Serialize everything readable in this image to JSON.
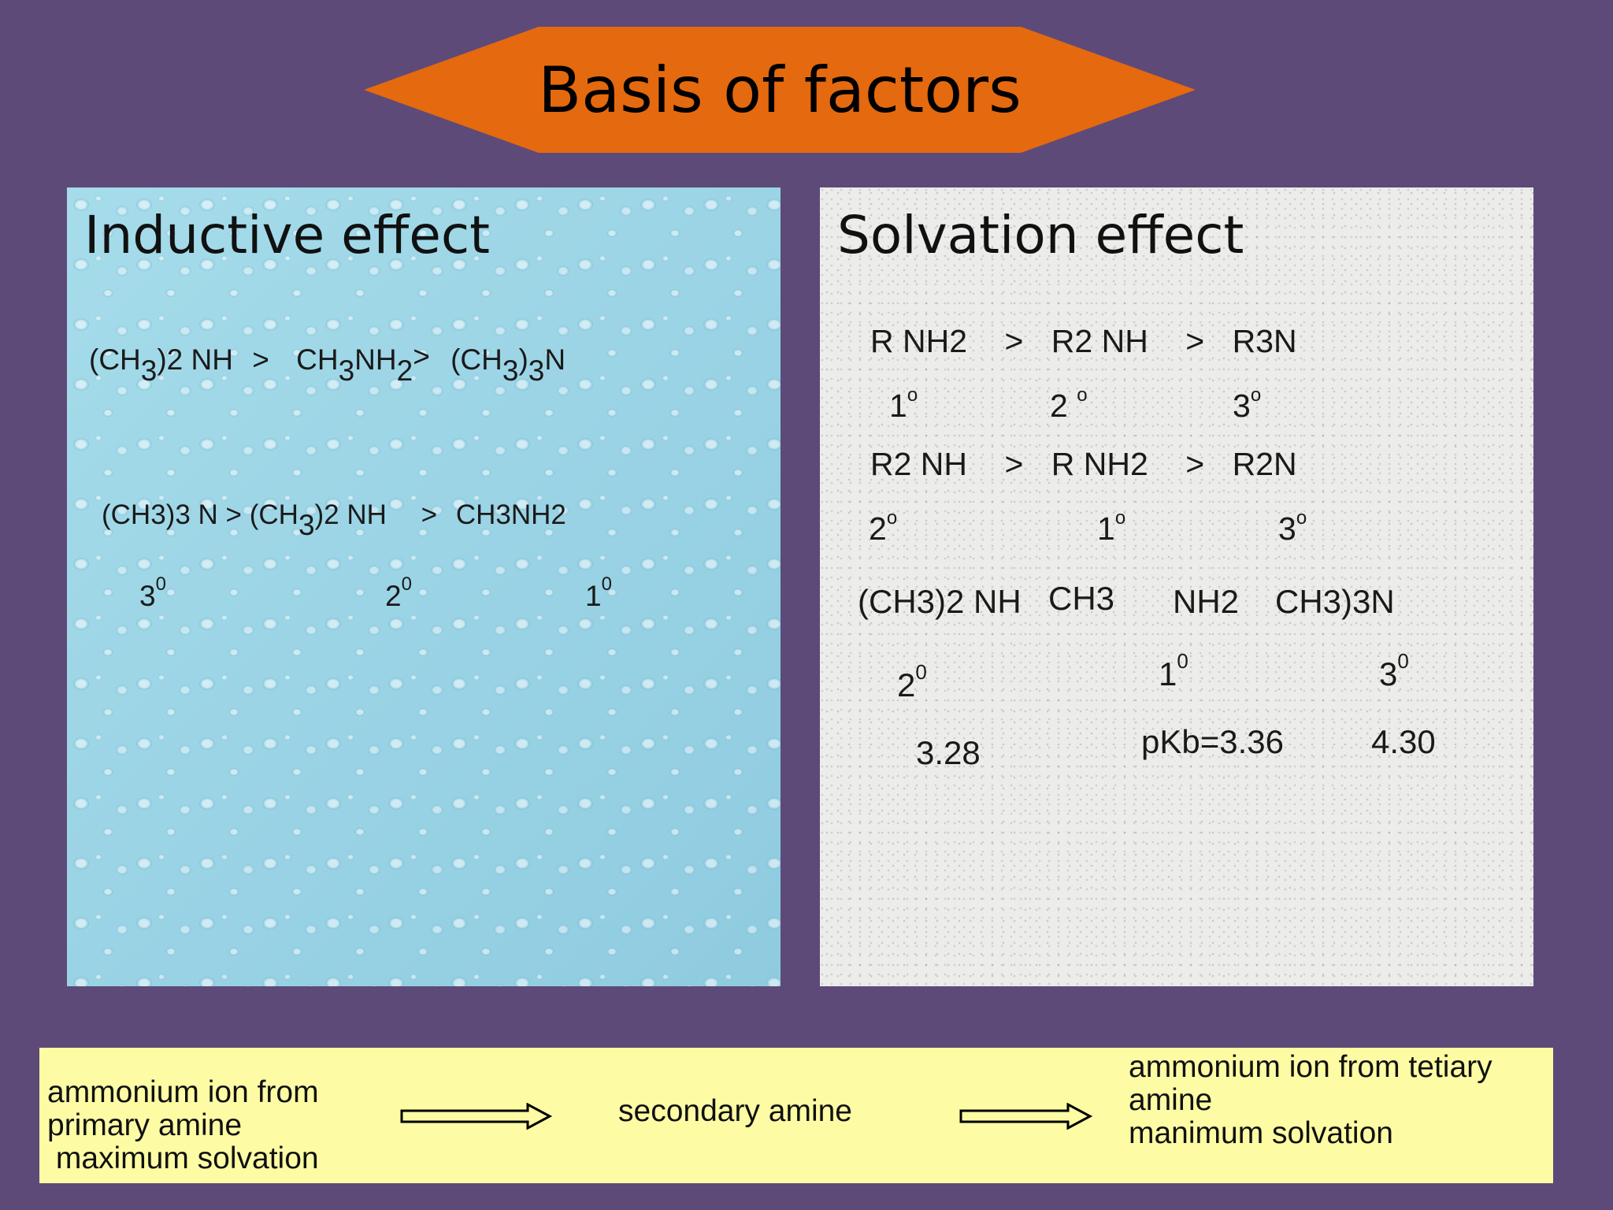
{
  "title": "Basis of factors",
  "inductive": {
    "heading": "Inductive effect",
    "row1": {
      "a_pre": "(CH",
      "a_sub": "3",
      "a_post": ")2 NH",
      "gt1": ">",
      "b_pre": "CH",
      "b_sub1": "3",
      "b_mid": "NH",
      "b_sub2": "2",
      "gt2": ">",
      "c_pre": "(CH",
      "c_sub1": "3",
      "c_mid": ")",
      "c_sub2": "3",
      "c_post": "N"
    },
    "row2": {
      "a": "(CH3)3 N",
      "gt1": ">",
      "b_pre": "(CH",
      "b_sub": "3",
      "b_post": ")2 NH",
      "gt2": ">",
      "c": "CH3NH2"
    },
    "degrees": [
      {
        "num": "3",
        "sup": "0"
      },
      {
        "num": "2",
        "sup": "0"
      },
      {
        "num": "1",
        "sup": "0"
      }
    ]
  },
  "solvation": {
    "heading": "Solvation effect",
    "order1": {
      "a": "R NH2",
      "gt1": ">",
      "b": "R2 NH",
      "gt2": ">",
      "c": "R3N"
    },
    "degrees1": [
      {
        "num": "1",
        "sup": "o"
      },
      {
        "num": "2",
        "sup": "o"
      },
      {
        "num": "3",
        "sup": "o"
      }
    ],
    "order2": {
      "a": "R2 NH",
      "gt1": ">",
      "b": "R NH2",
      "gt2": ">",
      "c": "R2N"
    },
    "degrees2": [
      {
        "num": "2",
        "sup": "o"
      },
      {
        "num": "1",
        "sup": "o"
      },
      {
        "num": "3",
        "sup": "o"
      }
    ],
    "amines": [
      "(CH3)2 NH",
      "CH3",
      "NH2",
      "CH3)3N"
    ],
    "degrees3": [
      {
        "num": "2",
        "sup": "0"
      },
      {
        "num": "1",
        "sup": "0"
      },
      {
        "num": "3",
        "sup": "0"
      }
    ],
    "pkb": [
      "3.28",
      "pKb=3.36",
      "4.30"
    ]
  },
  "bottom": {
    "left": "ammonium ion from\nprimary amine\n maximum solvation",
    "middle": "secondary amine",
    "right": "ammonium ion from tetiary\namine\nmanimum solvation"
  }
}
